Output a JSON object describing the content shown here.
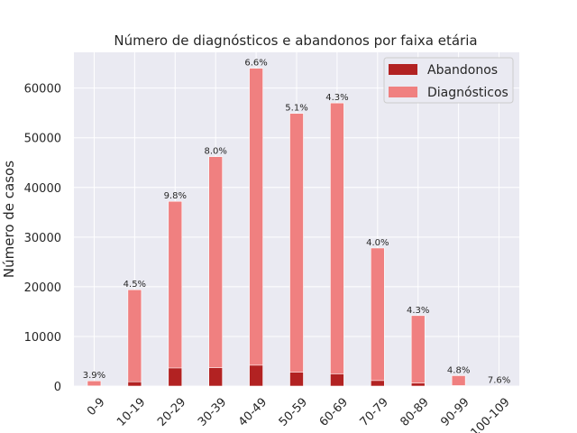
{
  "chart_data": {
    "type": "bar",
    "stacked": true,
    "title": "Número de diagnósticos e abandonos por faixa etária",
    "xlabel": "",
    "ylabel": "Número de casos",
    "categories": [
      "0-9",
      "10-19",
      "20-29",
      "30-39",
      "40-49",
      "50-59",
      "60-69",
      "70-79",
      "80-89",
      "90-99",
      "100-109"
    ],
    "series": [
      {
        "name": "Abandonos",
        "color": "#b22222",
        "values": [
          40,
          870,
          3640,
          3700,
          4200,
          2800,
          2450,
          1110,
          610,
          100,
          8
        ]
      },
      {
        "name": "Diagnósticos",
        "color": "#f08080",
        "values": [
          1050,
          19400,
          37200,
          46200,
          64000,
          54900,
          57000,
          27800,
          14200,
          2100,
          100
        ]
      }
    ],
    "data_labels": [
      "3.9%",
      "4.5%",
      "9.8%",
      "8.0%",
      "6.6%",
      "5.1%",
      "4.3%",
      "4.0%",
      "4.3%",
      "4.8%",
      "7.6%"
    ],
    "yticks": [
      0,
      10000,
      20000,
      30000,
      40000,
      50000,
      60000
    ],
    "ytick_labels": [
      "0",
      "10000",
      "20000",
      "30000",
      "40000",
      "50000",
      "60000"
    ],
    "ylim": [
      0,
      67200
    ],
    "grid": true,
    "legend_position": "top-right",
    "background": "#eaeaf2"
  }
}
